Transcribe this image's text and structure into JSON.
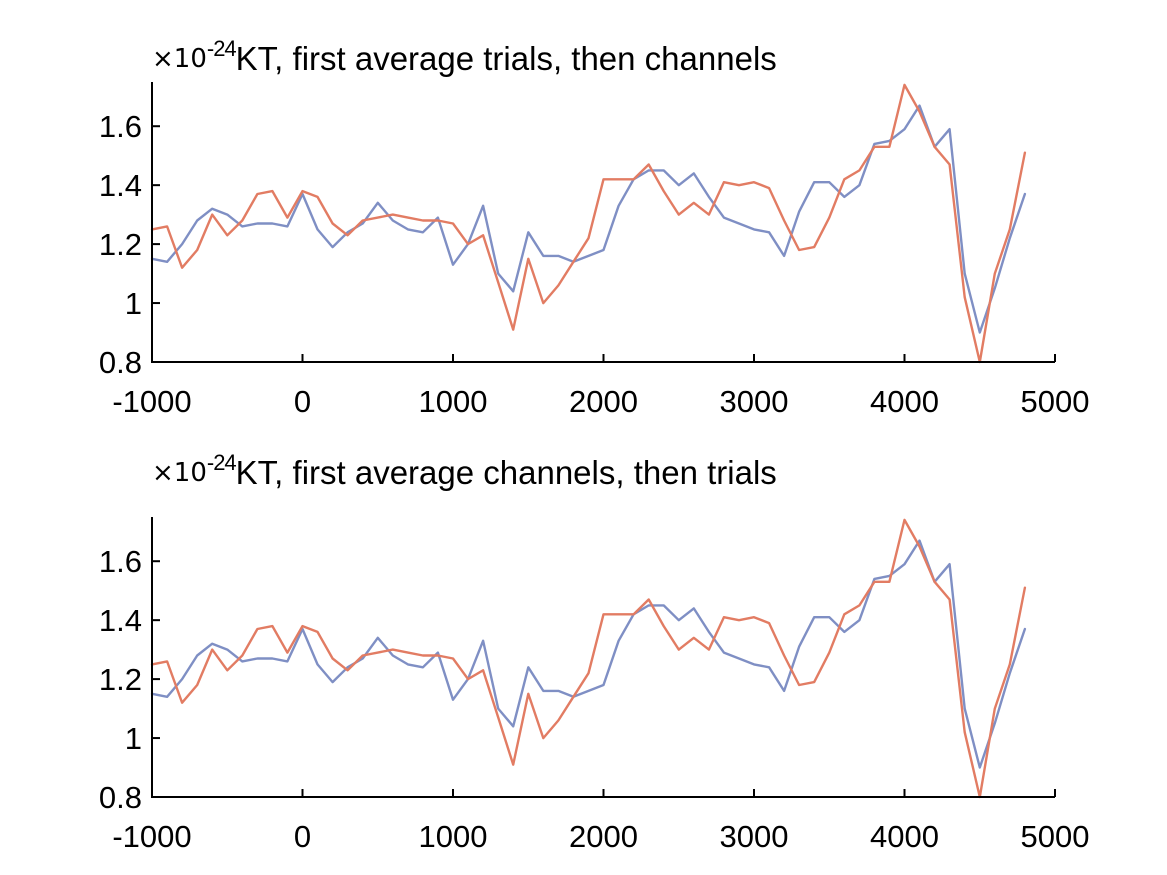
{
  "chart_data": [
    {
      "type": "line",
      "title": "KT, first average trials, then channels",
      "scale_prefix": "×10",
      "scale_exponent": "-24",
      "xlabel": "",
      "ylabel": "",
      "xlim": [
        -1000,
        5000
      ],
      "ylim": [
        0.8,
        1.75
      ],
      "xticks": [
        -1000,
        0,
        1000,
        2000,
        3000,
        4000,
        5000
      ],
      "xtick_labels": [
        "-1000",
        "0",
        "1000",
        "2000",
        "3000",
        "4000",
        "5000"
      ],
      "yticks": [
        0.8,
        1,
        1.2,
        1.4,
        1.6
      ],
      "ytick_labels": [
        "0.8",
        "1",
        "1.2",
        "1.4",
        "1.6"
      ],
      "grid": false,
      "series": [
        {
          "color": "#7f8fc4",
          "x": [
            -1000,
            -900,
            -800,
            -700,
            -600,
            -500,
            -400,
            -300,
            -200,
            -100,
            0,
            100,
            200,
            300,
            400,
            500,
            600,
            700,
            800,
            900,
            1000,
            1100,
            1200,
            1300,
            1400,
            1500,
            1600,
            1700,
            1800,
            1900,
            2000,
            2100,
            2200,
            2300,
            2400,
            2500,
            2600,
            2700,
            2800,
            2900,
            3000,
            3100,
            3200,
            3300,
            3400,
            3500,
            3600,
            3700,
            3800,
            3900,
            4000,
            4100,
            4200,
            4300,
            4400,
            4500,
            4600,
            4700,
            4800
          ],
          "y": [
            1.15,
            1.14,
            1.2,
            1.28,
            1.32,
            1.3,
            1.26,
            1.27,
            1.27,
            1.26,
            1.37,
            1.25,
            1.19,
            1.24,
            1.27,
            1.34,
            1.28,
            1.25,
            1.24,
            1.29,
            1.13,
            1.2,
            1.33,
            1.1,
            1.04,
            1.24,
            1.16,
            1.16,
            1.14,
            1.16,
            1.18,
            1.33,
            1.42,
            1.45,
            1.45,
            1.4,
            1.44,
            1.36,
            1.29,
            1.27,
            1.25,
            1.24,
            1.16,
            1.31,
            1.41,
            1.41,
            1.36,
            1.4,
            1.54,
            1.55,
            1.59,
            1.67,
            1.53,
            1.59,
            1.1,
            0.9,
            1.05,
            1.22,
            1.37
          ]
        },
        {
          "color": "#e27c63",
          "x": [
            -1000,
            -900,
            -800,
            -700,
            -600,
            -500,
            -400,
            -300,
            -200,
            -100,
            0,
            100,
            200,
            300,
            400,
            500,
            600,
            700,
            800,
            900,
            1000,
            1100,
            1200,
            1300,
            1400,
            1500,
            1600,
            1700,
            1800,
            1900,
            2000,
            2100,
            2200,
            2300,
            2400,
            2500,
            2600,
            2700,
            2800,
            2900,
            3000,
            3100,
            3200,
            3300,
            3400,
            3500,
            3600,
            3700,
            3800,
            3900,
            4000,
            4100,
            4200,
            4300,
            4400,
            4500,
            4600,
            4700,
            4800
          ],
          "y": [
            1.25,
            1.26,
            1.12,
            1.18,
            1.3,
            1.23,
            1.28,
            1.37,
            1.38,
            1.29,
            1.38,
            1.36,
            1.27,
            1.23,
            1.28,
            1.29,
            1.3,
            1.29,
            1.28,
            1.28,
            1.27,
            1.2,
            1.23,
            1.07,
            0.91,
            1.15,
            1.0,
            1.06,
            1.14,
            1.22,
            1.42,
            1.42,
            1.42,
            1.47,
            1.38,
            1.3,
            1.34,
            1.3,
            1.41,
            1.4,
            1.41,
            1.39,
            1.28,
            1.18,
            1.19,
            1.29,
            1.42,
            1.45,
            1.53,
            1.53,
            1.74,
            1.65,
            1.53,
            1.47,
            1.02,
            0.8,
            1.1,
            1.25,
            1.51
          ]
        }
      ]
    },
    {
      "type": "line",
      "title": "KT, first average channels, then trials",
      "scale_prefix": "×10",
      "scale_exponent": "-24",
      "xlabel": "",
      "ylabel": "",
      "xlim": [
        -1000,
        5000
      ],
      "ylim": [
        0.8,
        1.75
      ],
      "xticks": [
        -1000,
        0,
        1000,
        2000,
        3000,
        4000,
        5000
      ],
      "xtick_labels": [
        "-1000",
        "0",
        "1000",
        "2000",
        "3000",
        "4000",
        "5000"
      ],
      "yticks": [
        0.8,
        1,
        1.2,
        1.4,
        1.6
      ],
      "ytick_labels": [
        "0.8",
        "1",
        "1.2",
        "1.4",
        "1.6"
      ],
      "grid": false,
      "series": [
        {
          "color": "#7f8fc4",
          "x": [
            -1000,
            -900,
            -800,
            -700,
            -600,
            -500,
            -400,
            -300,
            -200,
            -100,
            0,
            100,
            200,
            300,
            400,
            500,
            600,
            700,
            800,
            900,
            1000,
            1100,
            1200,
            1300,
            1400,
            1500,
            1600,
            1700,
            1800,
            1900,
            2000,
            2100,
            2200,
            2300,
            2400,
            2500,
            2600,
            2700,
            2800,
            2900,
            3000,
            3100,
            3200,
            3300,
            3400,
            3500,
            3600,
            3700,
            3800,
            3900,
            4000,
            4100,
            4200,
            4300,
            4400,
            4500,
            4600,
            4700,
            4800
          ],
          "y": [
            1.15,
            1.14,
            1.2,
            1.28,
            1.32,
            1.3,
            1.26,
            1.27,
            1.27,
            1.26,
            1.37,
            1.25,
            1.19,
            1.24,
            1.27,
            1.34,
            1.28,
            1.25,
            1.24,
            1.29,
            1.13,
            1.2,
            1.33,
            1.1,
            1.04,
            1.24,
            1.16,
            1.16,
            1.14,
            1.16,
            1.18,
            1.33,
            1.42,
            1.45,
            1.45,
            1.4,
            1.44,
            1.36,
            1.29,
            1.27,
            1.25,
            1.24,
            1.16,
            1.31,
            1.41,
            1.41,
            1.36,
            1.4,
            1.54,
            1.55,
            1.59,
            1.67,
            1.53,
            1.59,
            1.1,
            0.9,
            1.05,
            1.22,
            1.37
          ]
        },
        {
          "color": "#e27c63",
          "x": [
            -1000,
            -900,
            -800,
            -700,
            -600,
            -500,
            -400,
            -300,
            -200,
            -100,
            0,
            100,
            200,
            300,
            400,
            500,
            600,
            700,
            800,
            900,
            1000,
            1100,
            1200,
            1300,
            1400,
            1500,
            1600,
            1700,
            1800,
            1900,
            2000,
            2100,
            2200,
            2300,
            2400,
            2500,
            2600,
            2700,
            2800,
            2900,
            3000,
            3100,
            3200,
            3300,
            3400,
            3500,
            3600,
            3700,
            3800,
            3900,
            4000,
            4100,
            4200,
            4300,
            4400,
            4500,
            4600,
            4700,
            4800
          ],
          "y": [
            1.25,
            1.26,
            1.12,
            1.18,
            1.3,
            1.23,
            1.28,
            1.37,
            1.38,
            1.29,
            1.38,
            1.36,
            1.27,
            1.23,
            1.28,
            1.29,
            1.3,
            1.29,
            1.28,
            1.28,
            1.27,
            1.2,
            1.23,
            1.07,
            0.91,
            1.15,
            1.0,
            1.06,
            1.14,
            1.22,
            1.42,
            1.42,
            1.42,
            1.47,
            1.38,
            1.3,
            1.34,
            1.3,
            1.41,
            1.4,
            1.41,
            1.39,
            1.28,
            1.18,
            1.19,
            1.29,
            1.42,
            1.45,
            1.53,
            1.53,
            1.74,
            1.65,
            1.53,
            1.47,
            1.02,
            0.8,
            1.1,
            1.25,
            1.51
          ]
        }
      ]
    }
  ]
}
